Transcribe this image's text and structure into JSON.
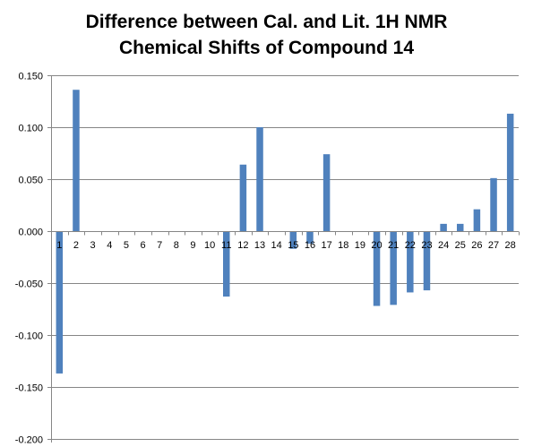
{
  "chart_data": {
    "type": "bar",
    "title_lines": [
      "Difference between Cal. and Lit. 1H NMR",
      "Chemical Shifts of Compound 14"
    ],
    "xlabel": "",
    "ylabel": "",
    "categories": [
      "1",
      "2",
      "3",
      "4",
      "5",
      "6",
      "7",
      "8",
      "9",
      "10",
      "11",
      "12",
      "13",
      "14",
      "15",
      "16",
      "17",
      "18",
      "19",
      "20",
      "21",
      "22",
      "23",
      "24",
      "25",
      "26",
      "27",
      "28"
    ],
    "values": [
      -0.137,
      0.136,
      0,
      0,
      0,
      0,
      0,
      0,
      0,
      0,
      -0.063,
      0.064,
      0.1,
      0,
      -0.017,
      -0.012,
      0.074,
      0,
      0,
      -0.072,
      -0.071,
      -0.059,
      -0.057,
      0.007,
      0.007,
      0.021,
      0.051,
      0.113
    ],
    "ylim": [
      -0.2,
      0.15
    ],
    "yticks": [
      "0.150",
      "0.100",
      "0.050",
      "0.000",
      "-0.050",
      "-0.100",
      "-0.150",
      "-0.200"
    ],
    "ytick_values": [
      0.15,
      0.1,
      0.05,
      0.0,
      -0.05,
      -0.1,
      -0.15,
      -0.2
    ],
    "grid": true,
    "legend": "none",
    "bar_color": "#4f81bd",
    "grid_color": "#868686",
    "axis_color": "#868686"
  }
}
